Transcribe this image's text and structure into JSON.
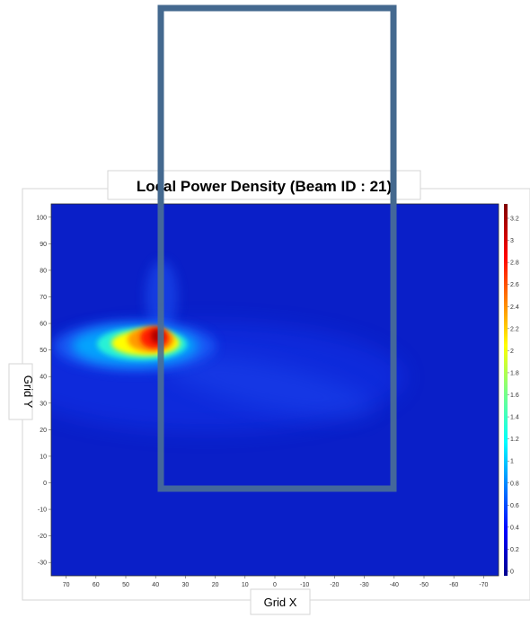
{
  "chart_data": {
    "type": "heatmap",
    "title": "Local Power Density (Beam ID : 21)",
    "xlabel": "Grid X",
    "ylabel": "Grid Y",
    "xlim": [
      75,
      -75
    ],
    "ylim": [
      -35,
      105
    ],
    "x_ticks": [
      "70",
      "60",
      "50",
      "40",
      "30",
      "20",
      "10",
      "0",
      "-10",
      "-20",
      "-30",
      "-40",
      "-50",
      "-60",
      "-70"
    ],
    "y_ticks": [
      "100",
      "90",
      "80",
      "70",
      "60",
      "50",
      "40",
      "30",
      "20",
      "10",
      "0",
      "-10",
      "-20",
      "-30"
    ],
    "colorbar": {
      "min": 0,
      "max": 3.3,
      "ticks": [
        "3.2",
        "3",
        "2.8",
        "2.6",
        "2.4",
        "2.2",
        "2",
        "1.8",
        "1.6",
        "1.4",
        "1.2",
        "1",
        "0.8",
        "0.6",
        "0.4",
        "0.2",
        "0"
      ],
      "colormap": "jet"
    },
    "hotspot": {
      "x": 40,
      "y": 53,
      "peak": 3.2
    },
    "background_color": "#0a1fc8",
    "overlay_rect": {
      "x_range": [
        39,
        -40
      ],
      "y_range": [
        -2,
        150
      ],
      "color": "#44698f"
    }
  }
}
